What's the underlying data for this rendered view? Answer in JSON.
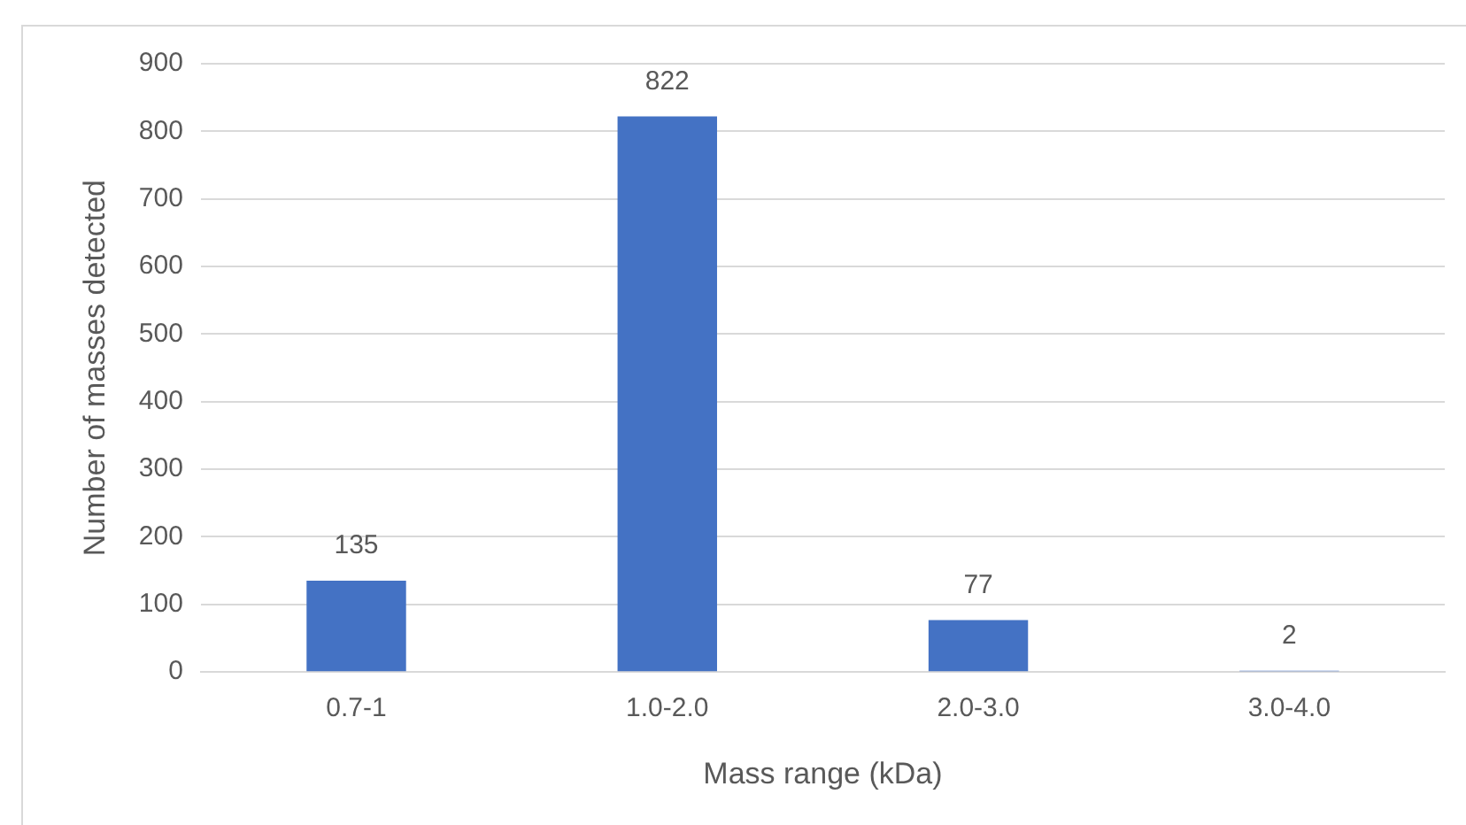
{
  "chart_data": {
    "type": "bar",
    "xlabel": "Mass range (kDa)",
    "ylabel": "Number of masses detected",
    "categories": [
      "0.7-1",
      "1.0-2.0",
      "2.0-3.0",
      "3.0-4.0"
    ],
    "values": [
      135,
      822,
      77,
      2
    ],
    "color": "#4472c4",
    "ylim": [
      0,
      900
    ],
    "yticks": [
      0,
      100,
      200,
      300,
      400,
      500,
      600,
      700,
      800,
      900
    ],
    "grid": "y",
    "legend": false,
    "data_labels": true
  }
}
